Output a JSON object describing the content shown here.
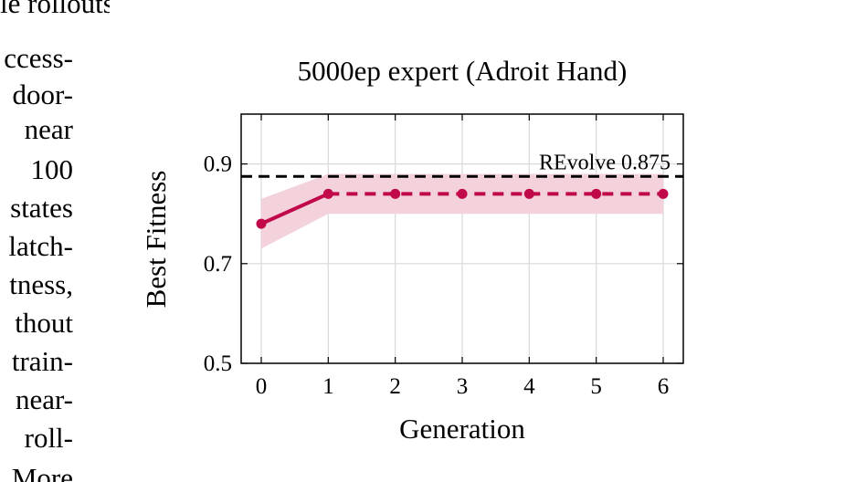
{
  "body_text": {
    "top_line": "le rollouts span them.",
    "left_lines": [
      "ccess-",
      "door-",
      "near",
      "100",
      "states",
      "latch-",
      "tness,",
      "thout",
      "train-",
      "near-",
      "roll-",
      "More"
    ]
  },
  "chart_data": {
    "type": "line",
    "title": "5000ep expert (Adroit Hand)",
    "xlabel": "Generation",
    "ylabel": "Best Fitness",
    "x": [
      0,
      1,
      2,
      3,
      4,
      5,
      6
    ],
    "xlim": [
      -0.3,
      6.3
    ],
    "ylim": [
      0.5,
      1.0
    ],
    "xticks": [
      "0",
      "1",
      "2",
      "3",
      "4",
      "5",
      "6"
    ],
    "yticks": [
      "0.5",
      "0.7",
      "0.9"
    ],
    "grid": true,
    "series": [
      {
        "values": [
          0.78,
          0.84,
          0.84,
          0.84,
          0.84,
          0.84,
          0.84
        ],
        "band_lower": [
          0.73,
          0.8,
          0.8,
          0.8,
          0.8,
          0.8,
          0.8
        ],
        "band_upper": [
          0.83,
          0.88,
          0.88,
          0.88,
          0.88,
          0.88,
          0.88
        ],
        "solid_until_index": 1,
        "color": "#c0084a",
        "band_color": "#f3d2dc"
      }
    ],
    "reference_line": {
      "value": 0.875,
      "label": "REvolve 0.875",
      "color": "#000000"
    }
  }
}
